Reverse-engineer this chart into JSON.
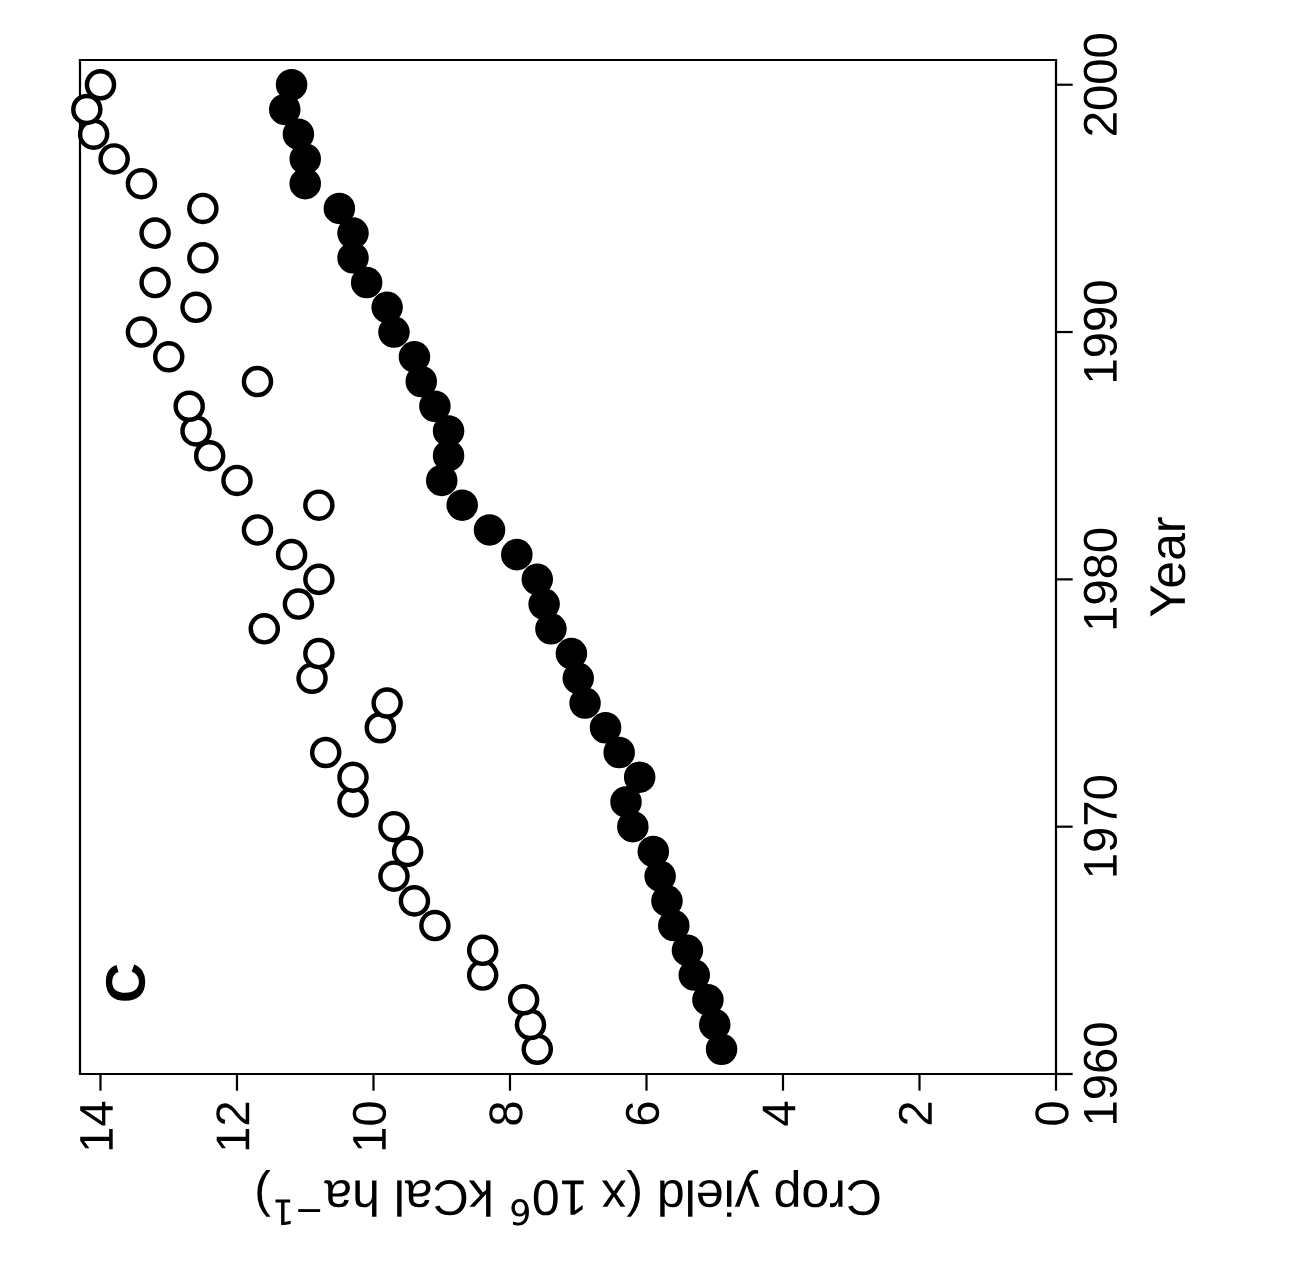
{
  "chart_data": {
    "type": "scatter",
    "title": "C",
    "xlabel": "Crop yield (x 10$^{6}$ kCal ha$^{−1}$)",
    "ylabel": "Year",
    "xlim": [
      14.3,
      0
    ],
    "xticks": [
      0,
      2,
      4,
      6,
      8,
      10,
      12,
      14
    ],
    "ylim": [
      1960,
      2001
    ],
    "yticks": [
      1960,
      1970,
      1980,
      1990,
      2000
    ],
    "grid": false,
    "legend": false,
    "marker": "circle",
    "series": [
      {
        "color": "#000000",
        "x": [
          7.6,
          7.7,
          7.8,
          8.4,
          8.4,
          9.1,
          9.4,
          9.7,
          9.5,
          9.7,
          10.3,
          10.3,
          10.7,
          9.9,
          9.8,
          10.9,
          10.8,
          11.6,
          11.1,
          10.8,
          11.2,
          11.7,
          10.8,
          12.0,
          12.4,
          12.6,
          12.7,
          11.7,
          13.0,
          13.4,
          12.6,
          13.2,
          12.5,
          13.2,
          12.5,
          13.4,
          13.8,
          14.1,
          14.2,
          14.0
        ],
        "values": [
          1961,
          1962,
          1963,
          1964,
          1965,
          1966,
          1967,
          1968,
          1969,
          1970,
          1971,
          1972,
          1973,
          1974,
          1975,
          1976,
          1977,
          1978,
          1979,
          1980,
          1981,
          1982,
          1983,
          1984,
          1985,
          1986,
          1987,
          1988,
          1989,
          1990,
          1991,
          1992,
          1993,
          1994,
          1995,
          1996,
          1997,
          1998,
          1999,
          2000
        ]
      },
      {
        "color": "#000000",
        "x": [
          4.9,
          5.0,
          5.1,
          5.3,
          5.4,
          5.6,
          5.7,
          5.8,
          5.9,
          6.2,
          6.3,
          6.1,
          6.4,
          6.6,
          6.9,
          7.0,
          7.1,
          7.4,
          7.5,
          7.6,
          7.9,
          8.3,
          8.7,
          9.0,
          8.9,
          8.9,
          9.1,
          9.3,
          9.4,
          9.7,
          9.8,
          10.1,
          10.3,
          10.3,
          10.5,
          11.0,
          11.0,
          11.1,
          11.3,
          11.2
        ],
        "values": [
          1961,
          1962,
          1963,
          1964,
          1965,
          1966,
          1967,
          1968,
          1969,
          1970,
          1971,
          1972,
          1973,
          1974,
          1975,
          1976,
          1977,
          1978,
          1979,
          1980,
          1981,
          1982,
          1983,
          1984,
          1985,
          1986,
          1987,
          1988,
          1989,
          1990,
          1991,
          1992,
          1993,
          1994,
          1995,
          1996,
          1997,
          1998,
          1999,
          2000
        ]
      }
    ]
  }
}
